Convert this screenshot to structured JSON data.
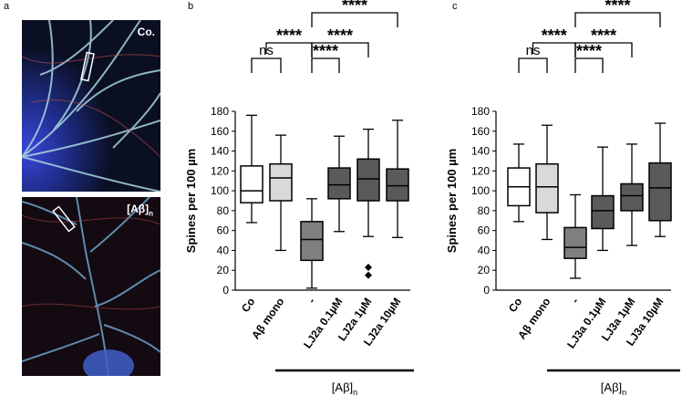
{
  "panels": {
    "a": {
      "letter": "a",
      "images": [
        {
          "label": "Co."
        },
        {
          "label": "[Aβ]",
          "label_sub": "n"
        }
      ]
    },
    "b": {
      "letter": "b"
    },
    "c": {
      "letter": "c"
    }
  },
  "colors": {
    "control": "#ffffff",
    "abeta_mono": "#d9d9d9",
    "vehicle": "#7f7f7f",
    "treatment": "#5a5a5a"
  },
  "chart_data": [
    {
      "type": "box",
      "ylabel": "Spines per 100 µm",
      "ylim": [
        0,
        180
      ],
      "yticks": [
        0,
        20,
        40,
        60,
        80,
        100,
        120,
        140,
        160,
        180
      ],
      "categories": [
        "Co",
        "Aβ mono",
        "-",
        "LJ2a 0.1µM",
        "LJ2a 1µM",
        "LJ2a 10µM"
      ],
      "fills": [
        "#ffffff",
        "#d9d9d9",
        "#7f7f7f",
        "#5a5a5a",
        "#5a5a5a",
        "#5a5a5a"
      ],
      "boxes": [
        {
          "min": 68,
          "q1": 88,
          "median": 100,
          "q3": 125,
          "max": 176
        },
        {
          "min": 40,
          "q1": 90,
          "median": 113,
          "q3": 127,
          "max": 156
        },
        {
          "min": 2,
          "q1": 30,
          "median": 51,
          "q3": 69,
          "max": 92
        },
        {
          "min": 59,
          "q1": 92,
          "median": 106,
          "q3": 123,
          "max": 155
        },
        {
          "min": 54,
          "q1": 90,
          "median": 112,
          "q3": 132,
          "max": 162
        },
        {
          "min": 53,
          "q1": 90,
          "median": 105,
          "q3": 122,
          "max": 171
        }
      ],
      "outliers": [
        {
          "category": 4,
          "values": [
            23,
            15
          ]
        }
      ],
      "group_label": "[Aβ]",
      "group_label_sub": "n",
      "brackets": [
        {
          "from": 0,
          "to": 1,
          "label": "ns",
          "level": 0
        },
        {
          "from": 2,
          "to": 3,
          "label": "****",
          "level": 0
        },
        {
          "from": "0-1",
          "to": 2,
          "label": "****",
          "level": 1
        },
        {
          "from": 2,
          "to": 4,
          "label": "****",
          "level": 1
        },
        {
          "from": 2,
          "to": 5,
          "label": "****",
          "level": 2
        }
      ]
    },
    {
      "type": "box",
      "ylabel": "Spines per 100 µm",
      "ylim": [
        0,
        180
      ],
      "yticks": [
        0,
        20,
        40,
        60,
        80,
        100,
        120,
        140,
        160,
        180
      ],
      "categories": [
        "Co",
        "Aβ mono",
        "-",
        "LJ3a 0.1µM",
        "LJ3a 1µM",
        "LJ3a 10µM"
      ],
      "fills": [
        "#ffffff",
        "#d9d9d9",
        "#7f7f7f",
        "#5a5a5a",
        "#5a5a5a",
        "#5a5a5a"
      ],
      "boxes": [
        {
          "min": 69,
          "q1": 85,
          "median": 104,
          "q3": 123,
          "max": 147
        },
        {
          "min": 51,
          "q1": 78,
          "median": 104,
          "q3": 127,
          "max": 166
        },
        {
          "min": 12,
          "q1": 32,
          "median": 43,
          "q3": 63,
          "max": 96
        },
        {
          "min": 40,
          "q1": 62,
          "median": 80,
          "q3": 95,
          "max": 144
        },
        {
          "min": 45,
          "q1": 80,
          "median": 95,
          "q3": 107,
          "max": 147
        },
        {
          "min": 54,
          "q1": 70,
          "median": 103,
          "q3": 128,
          "max": 168
        }
      ],
      "outliers": [],
      "group_label": "[Aβ]",
      "group_label_sub": "n",
      "brackets": [
        {
          "from": 0,
          "to": 1,
          "label": "ns",
          "level": 0
        },
        {
          "from": 2,
          "to": 3,
          "label": "****",
          "level": 0
        },
        {
          "from": "0-1",
          "to": 2,
          "label": "****",
          "level": 1
        },
        {
          "from": 2,
          "to": 4,
          "label": "****",
          "level": 1
        },
        {
          "from": 2,
          "to": 5,
          "label": "****",
          "level": 2
        }
      ]
    }
  ]
}
